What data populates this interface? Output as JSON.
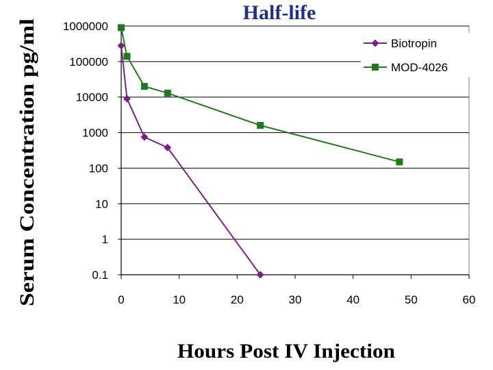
{
  "chart_data": {
    "type": "line",
    "title": "Half-life",
    "xlabel": "Hours Post IV Injection",
    "ylabel": "Serum Concentration pg/ml",
    "xlim": [
      0,
      60
    ],
    "ylim": [
      0.1,
      1000000
    ],
    "yscale": "log",
    "x_ticks": [
      "0",
      "10",
      "20",
      "30",
      "40",
      "50",
      "60"
    ],
    "y_ticks": [
      "1000000",
      "100000",
      "10000",
      "1000",
      "100",
      "10",
      "1",
      "0.1"
    ],
    "grid": "horizontal",
    "legend_position": "top-right",
    "series": [
      {
        "name": "Biotropin",
        "color": "#7a1f86",
        "marker": "diamond",
        "x": [
          0,
          1,
          4,
          8,
          24
        ],
        "y": [
          280000,
          9000,
          750,
          380,
          0.1
        ]
      },
      {
        "name": "MOD-4026",
        "color": "#1f7a1f",
        "marker": "square",
        "x": [
          0,
          1,
          4,
          8,
          24,
          48
        ],
        "y": [
          900000,
          140000,
          20000,
          13000,
          1600,
          150
        ]
      }
    ]
  }
}
